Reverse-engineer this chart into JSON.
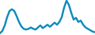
{
  "x": [
    0,
    1,
    2,
    3,
    4,
    5,
    6,
    7,
    8,
    9,
    10,
    11,
    12,
    13,
    14,
    15,
    16,
    17,
    18,
    19,
    20,
    21,
    22,
    23,
    24,
    25,
    26,
    27,
    28,
    29,
    30,
    31,
    32,
    33,
    34,
    35,
    36,
    37,
    38,
    39,
    40
  ],
  "y": [
    5,
    12,
    28,
    52,
    70,
    75,
    70,
    55,
    38,
    25,
    18,
    16,
    18,
    22,
    18,
    16,
    22,
    28,
    20,
    25,
    30,
    24,
    30,
    36,
    30,
    38,
    52,
    80,
    100,
    88,
    65,
    45,
    50,
    38,
    42,
    30,
    22,
    18,
    14,
    10,
    8
  ],
  "line_color": "#1a8fc0",
  "background_color": "#ffffff",
  "linewidth": 1.8
}
